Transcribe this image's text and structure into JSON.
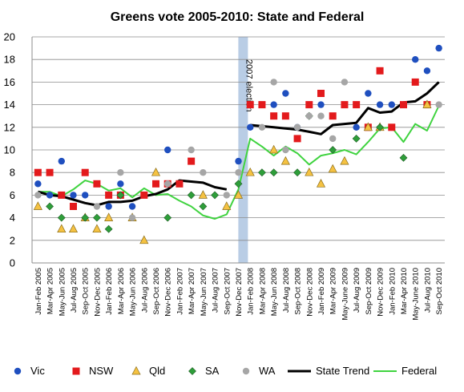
{
  "chart_data": {
    "type": "scatter",
    "title": "Greens vote 2005-2010:  State and Federal",
    "xlabel": "",
    "ylabel": "",
    "ylim": [
      0,
      20
    ],
    "yticks": [
      0,
      2,
      4,
      6,
      8,
      10,
      12,
      14,
      16,
      18,
      20
    ],
    "grid": "horizontal",
    "legend_position": "bottom",
    "x_labels": [
      "Jan-Feb 2005",
      "Mar-Apr 2005",
      "May-Jun 2005",
      "Jul-Aug 2005",
      "Sep-Oct 2005",
      "Nov-Dec 2005",
      "Jan-Feb 2006",
      "Mar-Apr 2006",
      "May-Jun 2006",
      "Jul-Aug 2006",
      "Sep-Oct 2006",
      "Nov-Dec 2006",
      "Jan-Feb 2007",
      "Mar-Apr 2007",
      "May-Jun 2007",
      "Jul-Aug 2007",
      "Sep-Oct 2007",
      "Nov-Dec 2007",
      "Jan-Feb 2008",
      "Mar-Apr 2008",
      "May-Jun 2008",
      "Jul-Aug 2008",
      "Sep-Oct 2008",
      "Nov-Dec 2008",
      "Jan-Feb 2009",
      "Mar-Apr 2009",
      "May-June 2009",
      "Jul-Aug 2009",
      "Sep-Oct 2009",
      "Nov-Dec 2009",
      "Jan-Feb 2010",
      "Mar-Apr 2010",
      "May-June 2010",
      "Jul-Aug 2010",
      "Sep-Oct 2010"
    ],
    "annotation": {
      "text": "2007 election",
      "x": 17.4
    },
    "series": [
      {
        "name": "Vic",
        "marker": "circle",
        "color": "#1f4fbf",
        "points": [
          [
            0,
            7
          ],
          [
            1,
            6
          ],
          [
            2,
            9
          ],
          [
            3,
            6
          ],
          [
            4,
            6
          ],
          [
            6,
            5
          ],
          [
            7,
            7
          ],
          [
            8,
            5
          ],
          [
            11,
            10
          ],
          [
            17,
            9
          ],
          [
            18,
            12
          ],
          [
            20,
            14
          ],
          [
            21,
            15
          ],
          [
            22,
            12
          ],
          [
            24,
            14
          ],
          [
            27,
            12
          ],
          [
            28,
            15
          ],
          [
            29,
            14
          ],
          [
            30,
            14
          ],
          [
            32,
            18
          ],
          [
            33,
            17
          ],
          [
            34,
            19
          ]
        ]
      },
      {
        "name": "NSW",
        "marker": "square",
        "color": "#e31a1c",
        "points": [
          [
            0,
            8
          ],
          [
            1,
            8
          ],
          [
            2,
            6
          ],
          [
            3,
            5
          ],
          [
            4,
            8
          ],
          [
            5,
            7
          ],
          [
            6,
            6
          ],
          [
            7,
            6
          ],
          [
            9,
            6
          ],
          [
            10,
            7
          ],
          [
            11,
            7
          ],
          [
            12,
            7
          ],
          [
            13,
            9
          ],
          [
            18,
            14
          ],
          [
            19,
            14
          ],
          [
            20,
            13
          ],
          [
            21,
            13
          ],
          [
            22,
            11
          ],
          [
            23,
            14
          ],
          [
            24,
            15
          ],
          [
            25,
            13
          ],
          [
            26,
            14
          ],
          [
            27,
            14
          ],
          [
            28,
            12
          ],
          [
            29,
            17
          ],
          [
            30,
            12
          ],
          [
            31,
            14
          ],
          [
            32,
            16
          ],
          [
            33,
            14
          ]
        ]
      },
      {
        "name": "Qld",
        "marker": "triangle",
        "color": "#f5c242",
        "points": [
          [
            0,
            5
          ],
          [
            2,
            3
          ],
          [
            3,
            3
          ],
          [
            4,
            4
          ],
          [
            5,
            3
          ],
          [
            6,
            4
          ],
          [
            8,
            4
          ],
          [
            9,
            2
          ],
          [
            10,
            8
          ],
          [
            14,
            6
          ],
          [
            16,
            5
          ],
          [
            17,
            6
          ],
          [
            18,
            8
          ],
          [
            20,
            10
          ],
          [
            21,
            9
          ],
          [
            23,
            8
          ],
          [
            24,
            7
          ],
          [
            25,
            8.3
          ],
          [
            26,
            9
          ],
          [
            28,
            12
          ],
          [
            29,
            12
          ],
          [
            33,
            14
          ]
        ]
      },
      {
        "name": "SA",
        "marker": "diamond",
        "color": "#2e9e3a",
        "points": [
          [
            1,
            5
          ],
          [
            2,
            4
          ],
          [
            4,
            4
          ],
          [
            5,
            4
          ],
          [
            6,
            3
          ],
          [
            7,
            6
          ],
          [
            11,
            4
          ],
          [
            13,
            6
          ],
          [
            14,
            5
          ],
          [
            15,
            6
          ],
          [
            17,
            7
          ],
          [
            19,
            8
          ],
          [
            20,
            8
          ],
          [
            22,
            8
          ],
          [
            23,
            13
          ],
          [
            25,
            10
          ],
          [
            27,
            11
          ],
          [
            29,
            12
          ],
          [
            31,
            9.3
          ]
        ]
      },
      {
        "name": "WA",
        "marker": "circle",
        "color": "#a6a6a6",
        "points": [
          [
            0,
            6
          ],
          [
            5,
            5
          ],
          [
            7,
            8
          ],
          [
            8,
            4
          ],
          [
            11,
            7
          ],
          [
            13,
            10
          ],
          [
            14,
            8
          ],
          [
            16,
            6
          ],
          [
            17,
            8
          ],
          [
            19,
            12
          ],
          [
            20,
            16
          ],
          [
            21,
            10
          ],
          [
            22,
            12
          ],
          [
            23,
            13
          ],
          [
            24,
            13
          ],
          [
            25,
            11
          ],
          [
            26,
            16
          ],
          [
            34,
            14
          ]
        ]
      },
      {
        "name": "State Trend",
        "type": "line",
        "color": "#000000",
        "stroke": 3,
        "segments": [
          [
            [
              0,
              6.3
            ],
            [
              1,
              6.0
            ],
            [
              2,
              5.9
            ],
            [
              3,
              5.6
            ],
            [
              4,
              5.3
            ],
            [
              5,
              5.1
            ],
            [
              6,
              5.4
            ],
            [
              7,
              5.4
            ],
            [
              8,
              5.5
            ],
            [
              9,
              5.9
            ],
            [
              10,
              6.1
            ],
            [
              11,
              6.5
            ],
            [
              12,
              7.3
            ],
            [
              13,
              7.2
            ],
            [
              14,
              7.1
            ],
            [
              15,
              6.7
            ],
            [
              16,
              6.5
            ]
          ],
          [
            [
              18,
              12.2
            ],
            [
              19,
              12.1
            ],
            [
              20,
              12.0
            ],
            [
              21,
              11.9
            ],
            [
              22,
              11.8
            ],
            [
              23,
              11.6
            ],
            [
              24,
              11.4
            ],
            [
              25,
              12.2
            ],
            [
              26,
              12.3
            ],
            [
              27,
              12.4
            ],
            [
              28,
              13.7
            ],
            [
              29,
              13.3
            ],
            [
              30,
              13.4
            ],
            [
              31,
              14.2
            ],
            [
              32,
              14.3
            ],
            [
              33,
              15.0
            ],
            [
              34,
              16.0
            ]
          ]
        ]
      },
      {
        "name": "Federal",
        "type": "line",
        "color": "#3fd33f",
        "stroke": 2,
        "segments": [
          [
            [
              0,
              6.3
            ],
            [
              1,
              6.3
            ],
            [
              2,
              5.9
            ],
            [
              3,
              6.5
            ],
            [
              4,
              7.3
            ],
            [
              5,
              7.0
            ],
            [
              6,
              6.4
            ],
            [
              7,
              6.6
            ],
            [
              8,
              5.8
            ],
            [
              9,
              6.6
            ],
            [
              10,
              6.0
            ],
            [
              11,
              6.1
            ],
            [
              12,
              5.5
            ],
            [
              13,
              5.0
            ],
            [
              14,
              4.2
            ],
            [
              15,
              3.9
            ],
            [
              16,
              4.3
            ],
            [
              17,
              6.5
            ],
            [
              18,
              11.0
            ],
            [
              19,
              10.3
            ],
            [
              20,
              9.5
            ],
            [
              21,
              10.3
            ],
            [
              22,
              9.7
            ],
            [
              23,
              8.7
            ],
            [
              24,
              9.5
            ],
            [
              25,
              9.7
            ],
            [
              26,
              10.0
            ],
            [
              27,
              9.6
            ],
            [
              28,
              10.7
            ],
            [
              29,
              11.9
            ],
            [
              30,
              12.0
            ],
            [
              31,
              10.7
            ],
            [
              32,
              12.3
            ],
            [
              33,
              11.7
            ],
            [
              34,
              13.9
            ]
          ]
        ]
      }
    ]
  }
}
